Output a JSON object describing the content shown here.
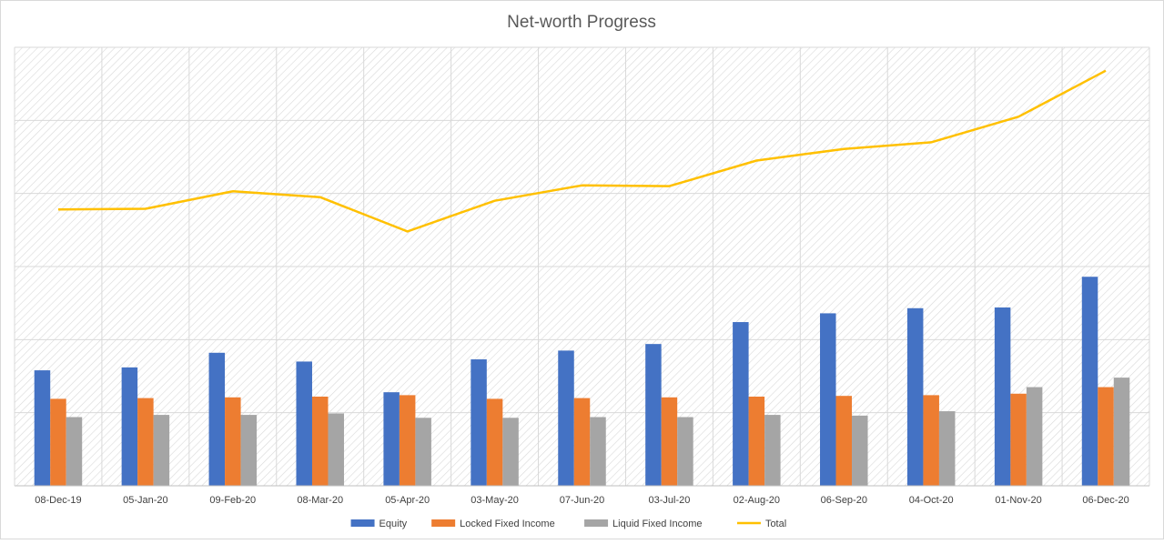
{
  "chart_data": {
    "type": "bar",
    "title": "Net-worth Progress",
    "categories": [
      "08-Dec-19",
      "05-Jan-20",
      "09-Feb-20",
      "08-Mar-20",
      "05-Apr-20",
      "03-May-20",
      "07-Jun-20",
      "03-Jul-20",
      "02-Aug-20",
      "06-Sep-20",
      "04-Oct-20",
      "01-Nov-20",
      "06-Dec-20"
    ],
    "ylim": [
      0,
      6
    ],
    "grid": true,
    "y_tick_labels_shown": false,
    "legend_position": "bottom",
    "series": [
      {
        "name": "Equity",
        "type": "bar",
        "color": "#4472C4",
        "values": [
          1.58,
          1.62,
          1.82,
          1.7,
          1.28,
          1.73,
          1.85,
          1.94,
          2.24,
          2.36,
          2.43,
          2.44,
          2.86
        ]
      },
      {
        "name": "Locked Fixed Income",
        "type": "bar",
        "color": "#ED7D31",
        "values": [
          1.19,
          1.2,
          1.21,
          1.22,
          1.24,
          1.19,
          1.2,
          1.21,
          1.22,
          1.23,
          1.24,
          1.26,
          1.35
        ]
      },
      {
        "name": "Liquid Fixed Income",
        "type": "bar",
        "color": "#A5A5A5",
        "values": [
          0.94,
          0.97,
          0.97,
          0.99,
          0.93,
          0.93,
          0.94,
          0.94,
          0.97,
          0.96,
          1.02,
          1.35,
          1.48
        ]
      },
      {
        "name": "Total",
        "type": "line",
        "color": "#FFC000",
        "values": [
          3.78,
          3.79,
          4.03,
          3.95,
          3.48,
          3.9,
          4.11,
          4.1,
          4.45,
          4.61,
          4.7,
          5.05,
          5.68
        ]
      }
    ]
  }
}
